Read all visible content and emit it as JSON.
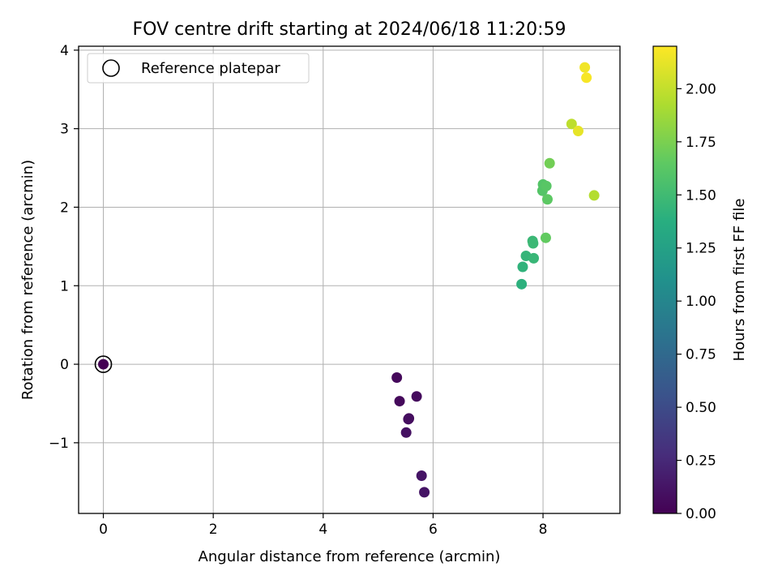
{
  "chart_data": {
    "type": "scatter",
    "title": "FOV centre drift starting at 2024/06/18 11:20:59",
    "xlabel": "Angular distance from reference (arcmin)",
    "ylabel": "Rotation from reference (arcmin)",
    "xlim": [
      -0.45,
      9.4
    ],
    "ylim": [
      -1.9,
      4.05
    ],
    "x_ticks": [
      0,
      2,
      4,
      6,
      8
    ],
    "x_tick_labels": [
      "0",
      "2",
      "4",
      "6",
      "8"
    ],
    "y_ticks": [
      -1,
      0,
      1,
      2,
      3,
      4
    ],
    "y_tick_labels": [
      "−1",
      "0",
      "1",
      "2",
      "3",
      "4"
    ],
    "grid": true,
    "legend": {
      "placement": "top-left",
      "label": "Reference platepar"
    },
    "reference_point": {
      "x": 0,
      "y": 0
    },
    "colorbar": {
      "label": "Hours from first FF file",
      "min": 0,
      "max": 2.2,
      "ticks": [
        0,
        0.25,
        0.5,
        0.75,
        1.0,
        1.25,
        1.5,
        1.75,
        2.0
      ],
      "tick_labels": [
        "0.00",
        "0.25",
        "0.50",
        "0.75",
        "1.00",
        "1.25",
        "1.50",
        "1.75",
        "2.00"
      ],
      "colormap": "viridis"
    },
    "points": [
      {
        "x": 0.0,
        "y": 0.0,
        "hours": 0.0
      },
      {
        "x": 5.34,
        "y": -0.17,
        "hours": 0.05
      },
      {
        "x": 5.39,
        "y": -0.47,
        "hours": 0.05
      },
      {
        "x": 5.7,
        "y": -0.41,
        "hours": 0.06
      },
      {
        "x": 5.56,
        "y": -0.69,
        "hours": 0.07
      },
      {
        "x": 5.55,
        "y": -0.7,
        "hours": 0.08
      },
      {
        "x": 5.51,
        "y": -0.87,
        "hours": 0.1
      },
      {
        "x": 5.79,
        "y": -1.42,
        "hours": 0.12
      },
      {
        "x": 5.84,
        "y": -1.63,
        "hours": 0.12
      },
      {
        "x": 7.61,
        "y": 1.02,
        "hours": 1.4
      },
      {
        "x": 7.63,
        "y": 1.24,
        "hours": 1.42
      },
      {
        "x": 7.69,
        "y": 1.38,
        "hours": 1.44
      },
      {
        "x": 7.83,
        "y": 1.35,
        "hours": 1.46
      },
      {
        "x": 7.81,
        "y": 1.57,
        "hours": 1.47
      },
      {
        "x": 7.82,
        "y": 1.54,
        "hours": 1.48
      },
      {
        "x": 8.05,
        "y": 1.61,
        "hours": 1.66
      },
      {
        "x": 7.99,
        "y": 2.21,
        "hours": 1.6
      },
      {
        "x": 8.0,
        "y": 2.29,
        "hours": 1.6
      },
      {
        "x": 8.06,
        "y": 2.27,
        "hours": 1.62
      },
      {
        "x": 8.08,
        "y": 2.1,
        "hours": 1.64
      },
      {
        "x": 8.12,
        "y": 2.56,
        "hours": 1.72
      },
      {
        "x": 8.52,
        "y": 3.06,
        "hours": 1.98
      },
      {
        "x": 8.64,
        "y": 2.97,
        "hours": 2.12
      },
      {
        "x": 8.93,
        "y": 2.15,
        "hours": 1.95
      },
      {
        "x": 8.76,
        "y": 3.78,
        "hours": 2.16
      },
      {
        "x": 8.79,
        "y": 3.65,
        "hours": 2.18
      }
    ]
  }
}
